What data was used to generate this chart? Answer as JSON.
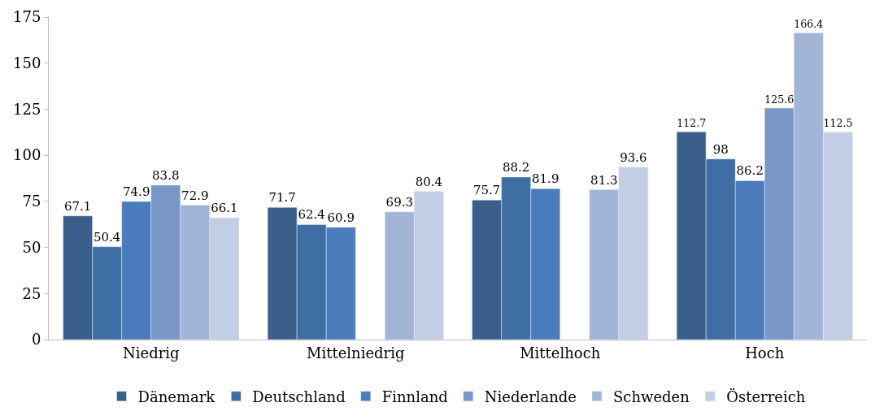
{
  "chart_data": {
    "type": "bar",
    "categories": [
      "Niedrig",
      "Mittelniedrig",
      "Mittelhoch",
      "Hoch"
    ],
    "series": [
      {
        "name": "Dänemark",
        "color": "#3a5f8b",
        "values": [
          67.1,
          71.7,
          75.7,
          112.7
        ]
      },
      {
        "name": "Deutschland",
        "color": "#3f6ea5",
        "values": [
          50.4,
          62.4,
          88.2,
          98
        ]
      },
      {
        "name": "Finnland",
        "color": "#4a7bba",
        "values": [
          74.9,
          60.9,
          81.9,
          86.2
        ]
      },
      {
        "name": "Niederlande",
        "color": "#7896c6",
        "values": [
          83.8,
          null,
          null,
          125.6
        ]
      },
      {
        "name": "Schweden",
        "color": "#a3b5d6",
        "values": [
          72.9,
          69.3,
          81.3,
          166.4
        ]
      },
      {
        "name": "Österreich",
        "color": "#c3cde3",
        "values": [
          66.1,
          80.4,
          93.6,
          112.5
        ]
      }
    ],
    "ylim": [
      0,
      175
    ],
    "yticks": [
      0,
      25,
      50,
      75,
      100,
      125,
      150,
      175
    ],
    "data_labels": true,
    "grid": false,
    "legend": "bottom"
  }
}
